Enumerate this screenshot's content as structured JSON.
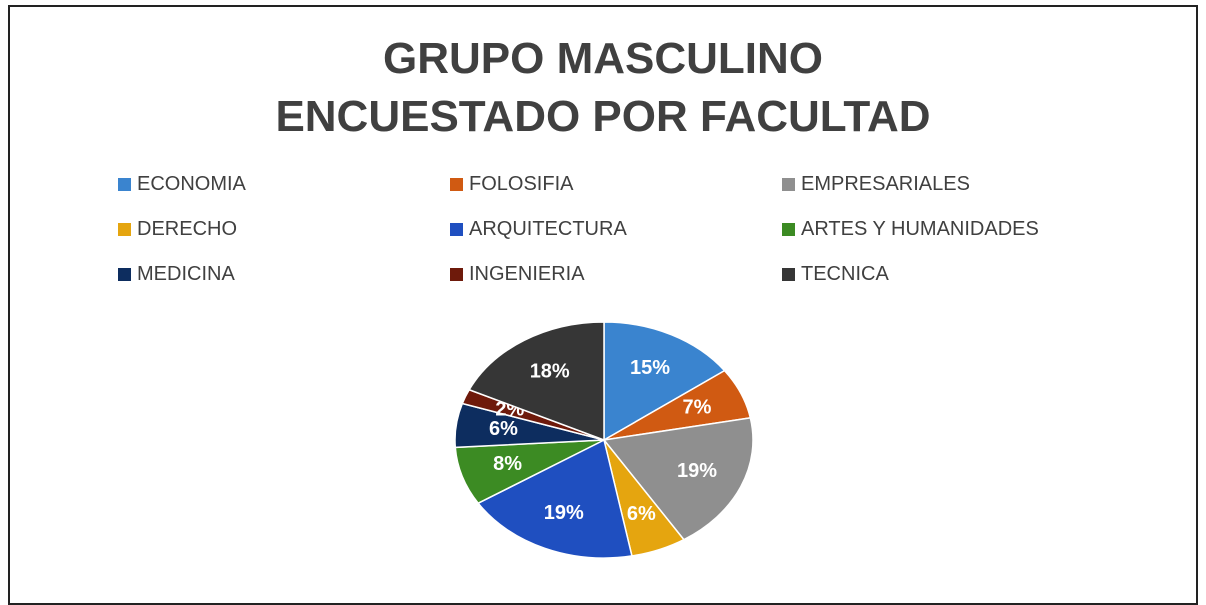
{
  "chart_data": {
    "type": "pie",
    "title": "GRUPO MASCULINO ENCUESTADO POR FACULTAD",
    "categories": [
      "ECONOMIA",
      "FOLOSIFIA",
      "EMPRESARIALES",
      "DERECHO",
      "ARQUITECTURA",
      "ARTES Y HUMANIDADES",
      "MEDICINA",
      "INGENIERIA",
      "TECNICA"
    ],
    "values": [
      15,
      7,
      19,
      6,
      19,
      8,
      6,
      2,
      18
    ],
    "value_labels": [
      "15%",
      "7%",
      "19%",
      "6%",
      "19%",
      "8%",
      "6%",
      "2%",
      "18%"
    ],
    "colors": [
      "#3a84cf",
      "#d05a12",
      "#8f8f8f",
      "#e5a50f",
      "#1f4fc0",
      "#3c8b23",
      "#0d2d5f",
      "#6e1a0b",
      "#363636"
    ],
    "legend": "top"
  }
}
